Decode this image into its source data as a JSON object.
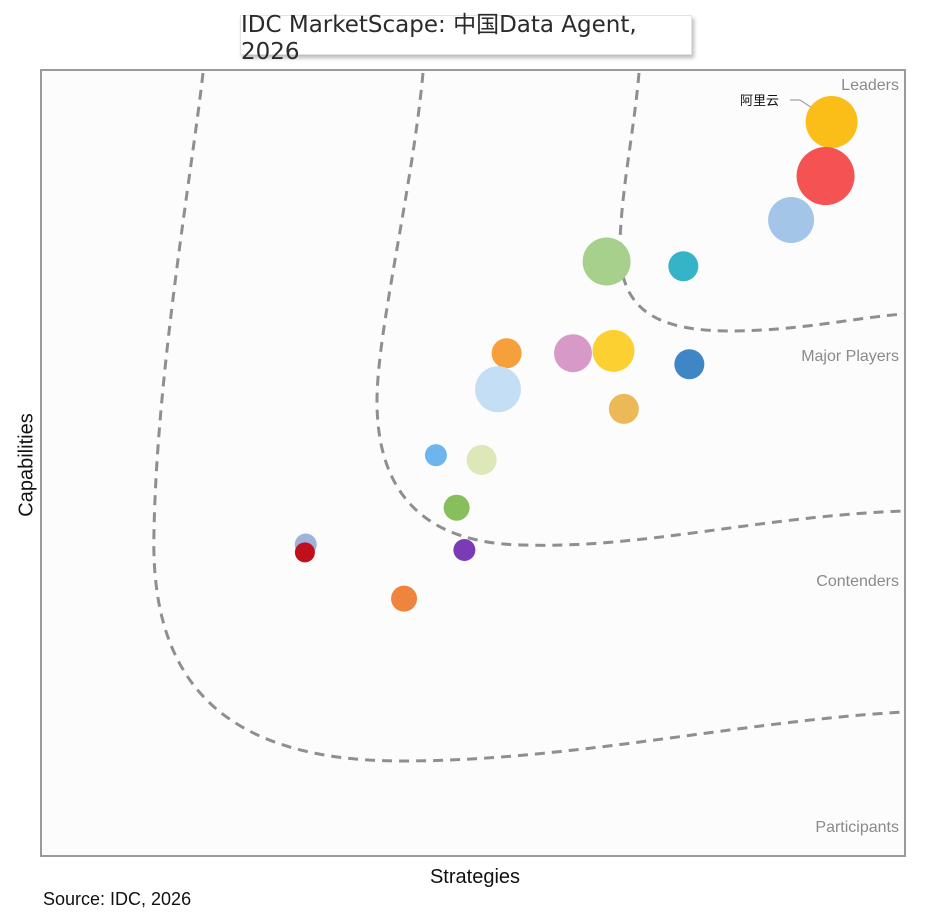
{
  "chart_data": {
    "type": "scatter",
    "title": "IDC MarketScape: 中国Data Agent, 2026",
    "xlabel": "Strategies",
    "ylabel": "Capabilities",
    "xlim": [
      0,
      1
    ],
    "ylim": [
      0,
      1
    ],
    "grid": false,
    "zones": [
      "Leaders",
      "Major Players",
      "Contenders",
      "Participants"
    ],
    "annotations": [
      {
        "text": "阿里云",
        "target_index": 0
      }
    ],
    "points": [
      {
        "x": 0.916,
        "y": 0.935,
        "size": 26,
        "color": "#fbbd17"
      },
      {
        "x": 0.909,
        "y": 0.866,
        "size": 29,
        "color": "#f55253"
      },
      {
        "x": 0.869,
        "y": 0.81,
        "size": 23,
        "color": "#a3c5e8"
      },
      {
        "x": 0.655,
        "y": 0.757,
        "size": 24,
        "color": "#a6d08c"
      },
      {
        "x": 0.744,
        "y": 0.751,
        "size": 15,
        "color": "#36b4c7"
      },
      {
        "x": 0.539,
        "y": 0.64,
        "size": 15,
        "color": "#f5a03a"
      },
      {
        "x": 0.616,
        "y": 0.64,
        "size": 19,
        "color": "#d79ac8"
      },
      {
        "x": 0.663,
        "y": 0.643,
        "size": 21,
        "color": "#fcd031"
      },
      {
        "x": 0.751,
        "y": 0.626,
        "size": 15,
        "color": "#3e86c5"
      },
      {
        "x": 0.529,
        "y": 0.594,
        "size": 23,
        "color": "#c3def5"
      },
      {
        "x": 0.675,
        "y": 0.569,
        "size": 15,
        "color": "#ebb958"
      },
      {
        "x": 0.457,
        "y": 0.51,
        "size": 11,
        "color": "#6eb5ed"
      },
      {
        "x": 0.51,
        "y": 0.504,
        "size": 15,
        "color": "#dde8b8"
      },
      {
        "x": 0.481,
        "y": 0.443,
        "size": 13,
        "color": "#88be5b"
      },
      {
        "x": 0.306,
        "y": 0.396,
        "size": 11,
        "color": "#9fb2db"
      },
      {
        "x": 0.305,
        "y": 0.386,
        "size": 10,
        "color": "#c0101b"
      },
      {
        "x": 0.49,
        "y": 0.389,
        "size": 11,
        "color": "#7b3bb6"
      },
      {
        "x": 0.42,
        "y": 0.327,
        "size": 13,
        "color": "#ef853d"
      }
    ]
  },
  "footer": {
    "source": "Source: IDC, 2026"
  }
}
